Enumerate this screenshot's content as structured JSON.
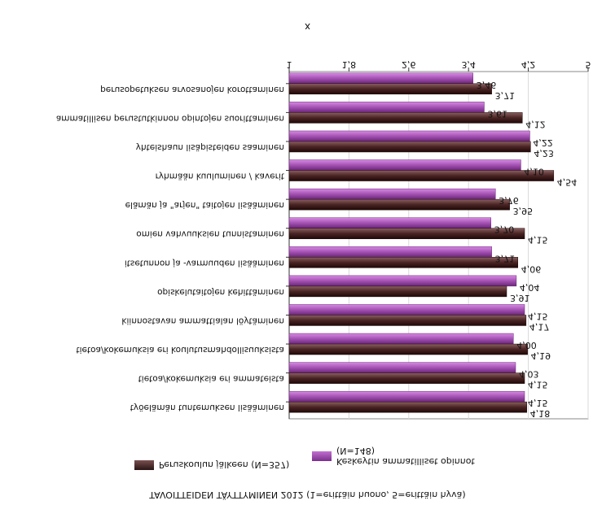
{
  "chart_data": {
    "type": "bar",
    "orientation": "horizontal",
    "title": "TAVOITTEIDEN TÄYTTYMINEN 2012 (1=erittäin huono, 5=erittäin hyvä)",
    "xlabel": "x",
    "xlim": [
      1,
      5
    ],
    "xticks": [
      "1",
      "1,8",
      "2,6",
      "3,4",
      "4,2",
      "5"
    ],
    "legend_position": "bottom",
    "categories": [
      "perusopetuksen arvosanojen korottaminen",
      "ammatillisen perustutkinnon opintojen suorittaminen",
      "yhteishaun lisäpisteiden saaminen",
      "ryhmään kuuluminen / kaverit",
      "elämän ja \"arjen\" taitojen lisääminen",
      "omien vahvuuksien tunnistaminen",
      "itsetunnon ja -varmuuden lisääminen",
      "opiskelutaitojen kehittäminen",
      "kiinnostavan ammattialan löytäminen",
      "tietoa/kokemuksia eri koulutusmahdollisuuksista",
      "tietoa/kokemuksia eri ammateista",
      "työelämän tuntemuksen lisääminen"
    ],
    "series": [
      {
        "name": "Keskeytin ammatilliset opinnot (N=148)",
        "color": "#9a4aa8",
        "values": [
          3.46,
          3.61,
          4.22,
          4.1,
          3.76,
          3.7,
          3.71,
          4.04,
          4.15,
          4.0,
          4.03,
          4.15
        ],
        "labels": [
          "3,46",
          "3,61",
          "4,22",
          "4,10",
          "3,76",
          "3,70",
          "3,71",
          "4,04",
          "4,15",
          "4,00",
          "4,03",
          "4,15"
        ]
      },
      {
        "name": "Peruskoulun jälkeen (N=357)",
        "color": "#4a2424",
        "values": [
          3.71,
          4.12,
          4.23,
          4.54,
          3.95,
          4.15,
          4.06,
          3.91,
          4.17,
          4.19,
          4.15,
          4.18
        ],
        "labels": [
          "3,71",
          "4,12",
          "4,23",
          "4,54",
          "3,95",
          "4,15",
          "4,06",
          "3,91",
          "4,17",
          "4,19",
          "4,15",
          "4,18"
        ]
      }
    ]
  },
  "legend": {
    "series1_line1": "(N=148)",
    "series1_line2": "Keskeytin ammatilliset opinnot",
    "series2_label": "Peruskoulun jälkeen (N=357)"
  }
}
